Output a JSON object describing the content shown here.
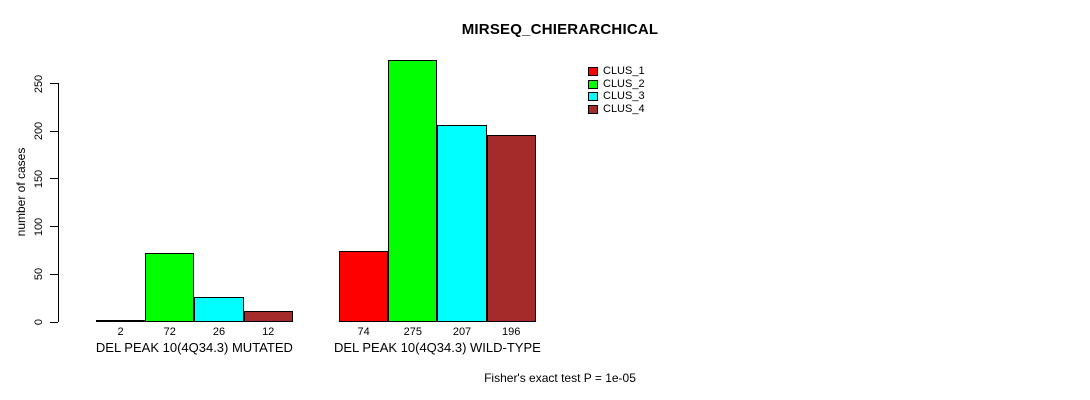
{
  "chart_data": {
    "type": "bar",
    "title": "MIRSEQ_CHIERARCHICAL",
    "xlabel": "",
    "ylabel": "number of cases",
    "ylim": [
      0,
      250
    ],
    "yticks": [
      0,
      50,
      100,
      150,
      200,
      250
    ],
    "grid": false,
    "legend_position": "top-right",
    "bar_value_labels_shown": true,
    "categories": [
      "DEL PEAK 10(4Q34.3) MUTATED",
      "DEL PEAK 10(4Q34.3) WILD-TYPE"
    ],
    "series": [
      {
        "name": "CLUS_1",
        "color": "#FF0000",
        "values": [
          2,
          74
        ]
      },
      {
        "name": "CLUS_2",
        "color": "#00FF00",
        "values": [
          72,
          275
        ]
      },
      {
        "name": "CLUS_3",
        "color": "#00FFFF",
        "values": [
          26,
          207
        ]
      },
      {
        "name": "CLUS_4",
        "color": "#A52A2A",
        "values": [
          12,
          196
        ]
      }
    ],
    "annotation": "Fisher's exact test P = 1e-05"
  }
}
